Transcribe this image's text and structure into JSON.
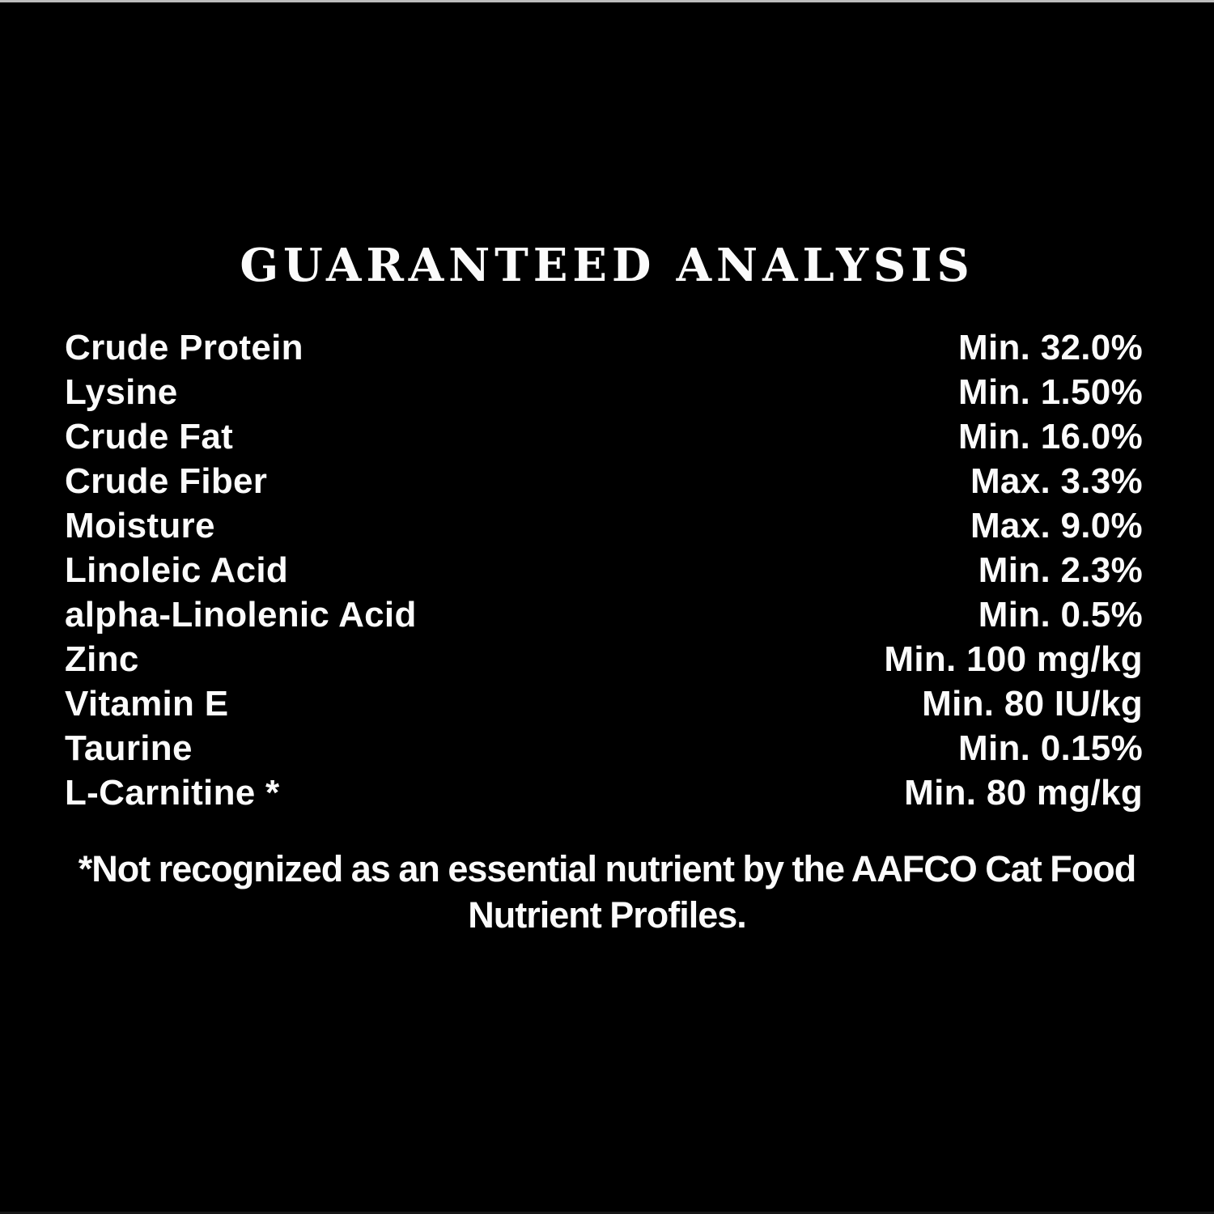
{
  "page": {
    "background": "#000000",
    "text_color": "#fbfbfb",
    "top_edge_line_color": "#bdbdbd",
    "bottom_edge_line_color": "#161616"
  },
  "title": "GUARANTEED ANALYSIS",
  "rows": [
    {
      "label": "Crude Protein",
      "value": "Min. 32.0%"
    },
    {
      "label": "Lysine",
      "value": "Min. 1.50%"
    },
    {
      "label": "Crude Fat",
      "value": "Min. 16.0%"
    },
    {
      "label": "Crude Fiber",
      "value": "Max. 3.3%"
    },
    {
      "label": "Moisture",
      "value": "Max. 9.0%"
    },
    {
      "label": "Linoleic Acid",
      "value": "Min. 2.3%"
    },
    {
      "label": "alpha-Linolenic Acid",
      "value": "Min. 0.5%"
    },
    {
      "label": "Zinc",
      "value": "Min. 100 mg/kg"
    },
    {
      "label": "Vitamin E",
      "value": "Min. 80 IU/kg"
    },
    {
      "label": "Taurine",
      "value": "Min. 0.15%"
    },
    {
      "label": "L-Carnitine *",
      "value": "Min. 80 mg/kg"
    }
  ],
  "footnote": "*Not recognized as an essential nutrient by the AAFCO Cat Food Nutrient Profiles."
}
